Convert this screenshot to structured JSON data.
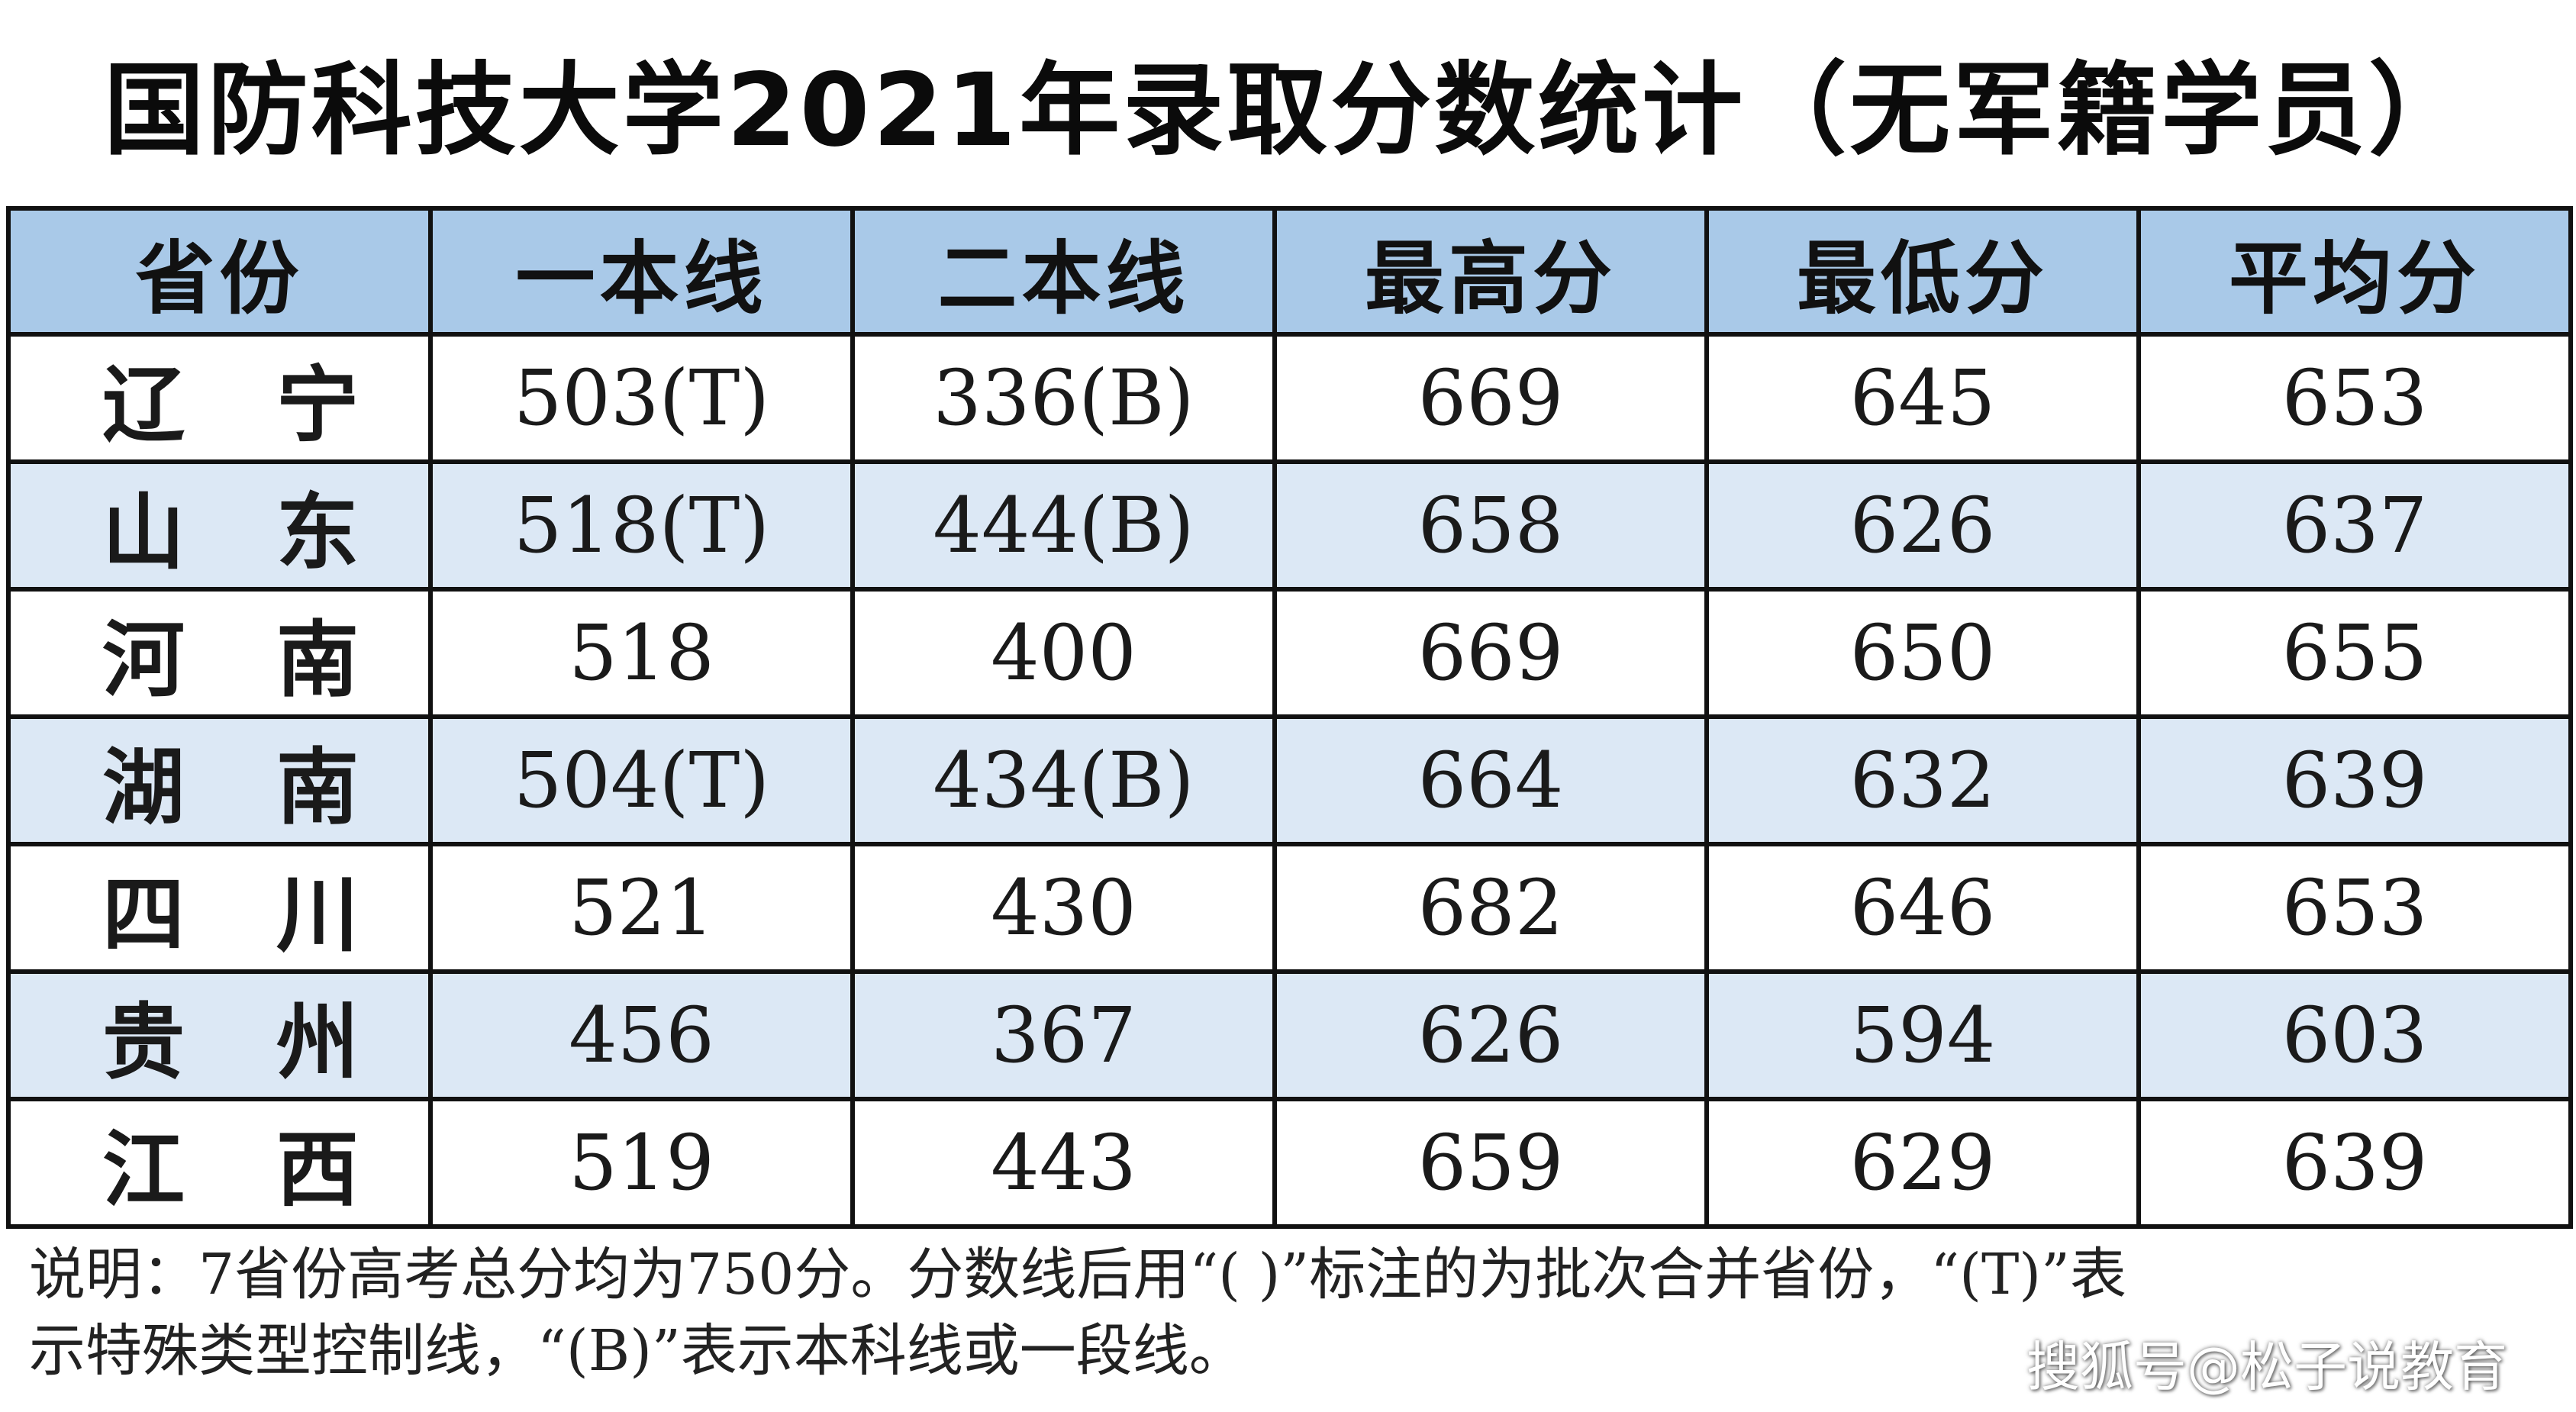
{
  "title": "国防科技大学2021年录取分数统计（无军籍学员）",
  "table": {
    "headers": [
      "省份",
      "一本线",
      "二本线",
      "最高分",
      "最低分",
      "平均分"
    ],
    "rows": [
      [
        "辽宁",
        "503(T)",
        "336(B)",
        "669",
        "645",
        "653"
      ],
      [
        "山东",
        "518(T)",
        "444(B)",
        "658",
        "626",
        "637"
      ],
      [
        "河南",
        "518",
        "400",
        "669",
        "650",
        "655"
      ],
      [
        "湖南",
        "504(T)",
        "434(B)",
        "664",
        "632",
        "639"
      ],
      [
        "四川",
        "521",
        "430",
        "682",
        "646",
        "653"
      ],
      [
        "贵州",
        "456",
        "367",
        "626",
        "594",
        "603"
      ],
      [
        "江西",
        "519",
        "443",
        "659",
        "629",
        "639"
      ]
    ]
  },
  "note": {
    "line1": "说明：7省份高考总分均为750分。分数线后用“( )”标注的为批次合并省份，“(T)”表",
    "line2": "示特殊类型控制线，“(B)”表示本科线或一段线。"
  },
  "watermark": "搜狐号@松子说教育",
  "colors": {
    "header_bg": "#a9c9e8",
    "alt_row_bg": "#dce8f5",
    "row_bg": "#ffffff",
    "border": "#111111"
  }
}
